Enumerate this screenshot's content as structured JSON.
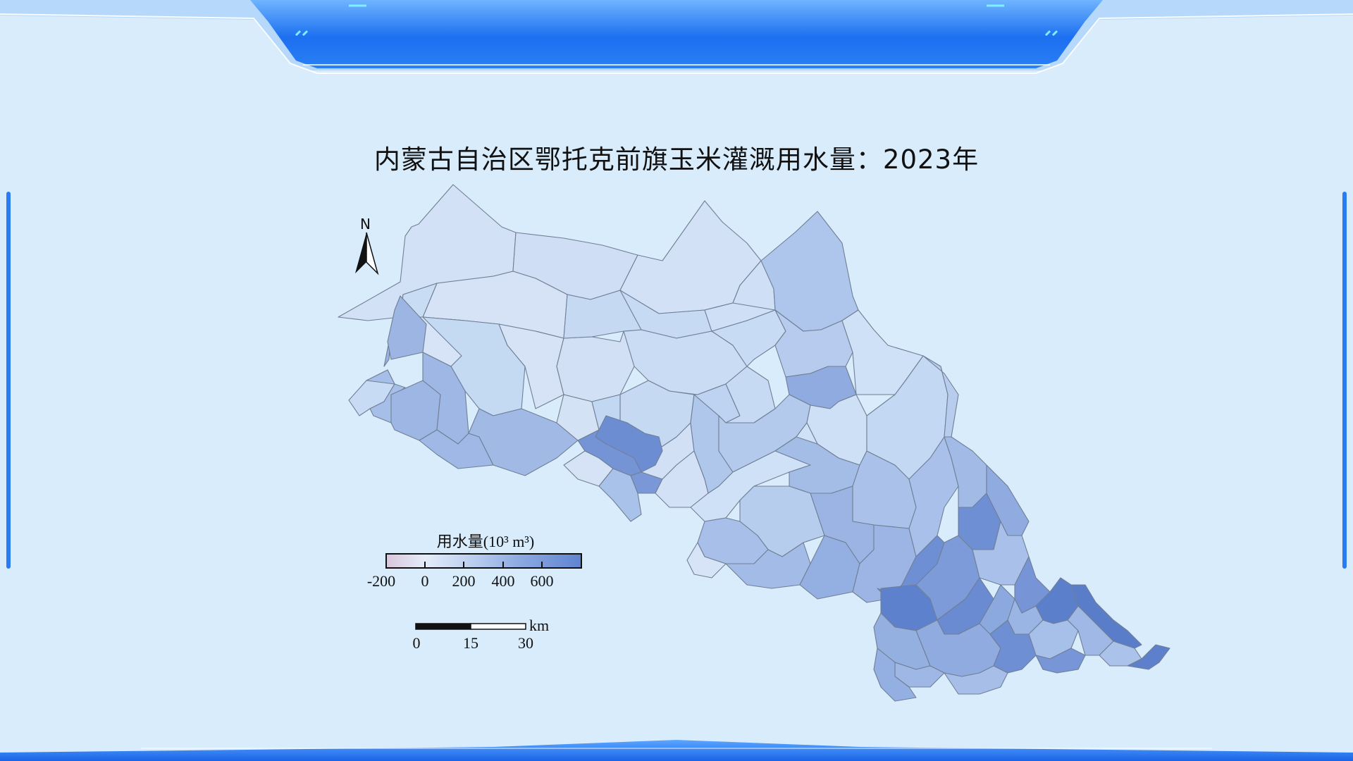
{
  "title": "内蒙古自治区鄂托克前旗玉米灌溉用水量：2023年",
  "north_arrow": {
    "label": "N"
  },
  "legend": {
    "title": "用水量(10³ m³)",
    "ticks": [
      "-200",
      "0",
      "200",
      "400",
      "600"
    ],
    "range": [
      -200,
      800
    ],
    "colors": [
      "#d8c6dc",
      "#e4ecf9",
      "#b9cdef",
      "#8aa7e0",
      "#5f84d0"
    ]
  },
  "scale_bar": {
    "unit": "km",
    "ticks": [
      "0",
      "15",
      "30"
    ]
  },
  "colors": {
    "background": "#d9ecfb",
    "frame_blue": "#1a6cf0",
    "frame_light": "#3f8ff5",
    "region_border": "#6f7f95"
  }
}
